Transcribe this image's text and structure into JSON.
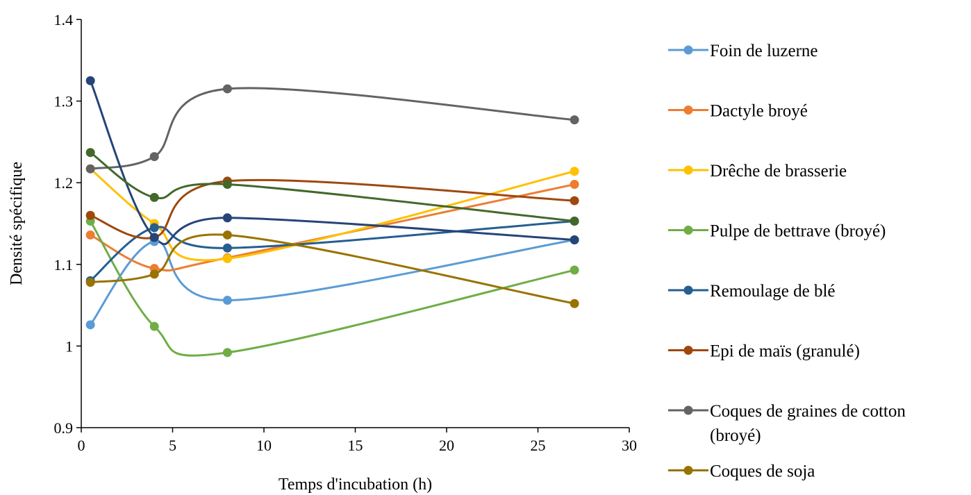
{
  "chart_data": {
    "type": "line",
    "title": "",
    "xlabel": "Temps d'incubation (h)",
    "ylabel": "Densité spécifique",
    "xlim": [
      0,
      30
    ],
    "ylim": [
      0.9,
      1.4
    ],
    "xticks": [
      0,
      5,
      10,
      15,
      20,
      25,
      30
    ],
    "yticks": [
      0.9,
      1,
      1.1,
      1.2,
      1.3,
      1.4
    ],
    "xtick_labels": [
      "0",
      "5",
      "10",
      "15",
      "20",
      "25",
      "30"
    ],
    "ytick_labels": [
      "0.9",
      "1",
      "1.1",
      "1.2",
      "1.3",
      "1.4"
    ],
    "grid": false,
    "smooth": true,
    "legend_position": "right",
    "x": [
      0.5,
      4,
      8,
      27
    ],
    "series": [
      {
        "name": "Foin de luzerne",
        "color": "#5B9BD5",
        "values": [
          1.026,
          1.128,
          1.056,
          1.13
        ]
      },
      {
        "name": "Dactyle broyé",
        "color": "#ED7D31",
        "values": [
          1.136,
          1.095,
          1.108,
          1.198
        ]
      },
      {
        "name": "Drêche de brasserie",
        "color": "#FFC000",
        "values": [
          1.217,
          1.15,
          1.107,
          1.214
        ]
      },
      {
        "name": "Pulpe de bettrave (broyé)",
        "color": "#70AD47",
        "values": [
          1.153,
          1.024,
          0.992,
          1.093
        ]
      },
      {
        "name": "Remoulage de blé",
        "color": "#255E91",
        "values": [
          1.08,
          1.145,
          1.12,
          1.153
        ]
      },
      {
        "name": "Epi de maïs (granulé)",
        "color": "#9E480E",
        "values": [
          1.16,
          1.133,
          1.202,
          1.178
        ]
      },
      {
        "name": "Coques de graines de cotton (broyé)",
        "color": "#636363",
        "values": [
          1.217,
          1.232,
          1.315,
          1.277
        ]
      },
      {
        "name": "Coques de soja",
        "color": "#997300",
        "values": [
          1.078,
          1.088,
          1.136,
          1.052
        ]
      },
      {
        "name": "",
        "color": "#264478",
        "values": [
          1.325,
          1.133,
          1.157,
          1.13
        ]
      },
      {
        "name": "",
        "color": "#43682B",
        "values": [
          1.237,
          1.182,
          1.198,
          1.153
        ]
      }
    ],
    "legend_lines": [
      [
        "Foin de luzerne"
      ],
      [
        "Dactyle broyé"
      ],
      [
        "Drêche de brasserie"
      ],
      [
        "Pulpe de bettrave (broyé)"
      ],
      [
        "Remoulage de blé"
      ],
      [
        "Epi de maïs (granulé)"
      ],
      [
        "Coques de graines de cotton",
        "(broyé)"
      ],
      [
        "Coques de soja"
      ]
    ]
  }
}
